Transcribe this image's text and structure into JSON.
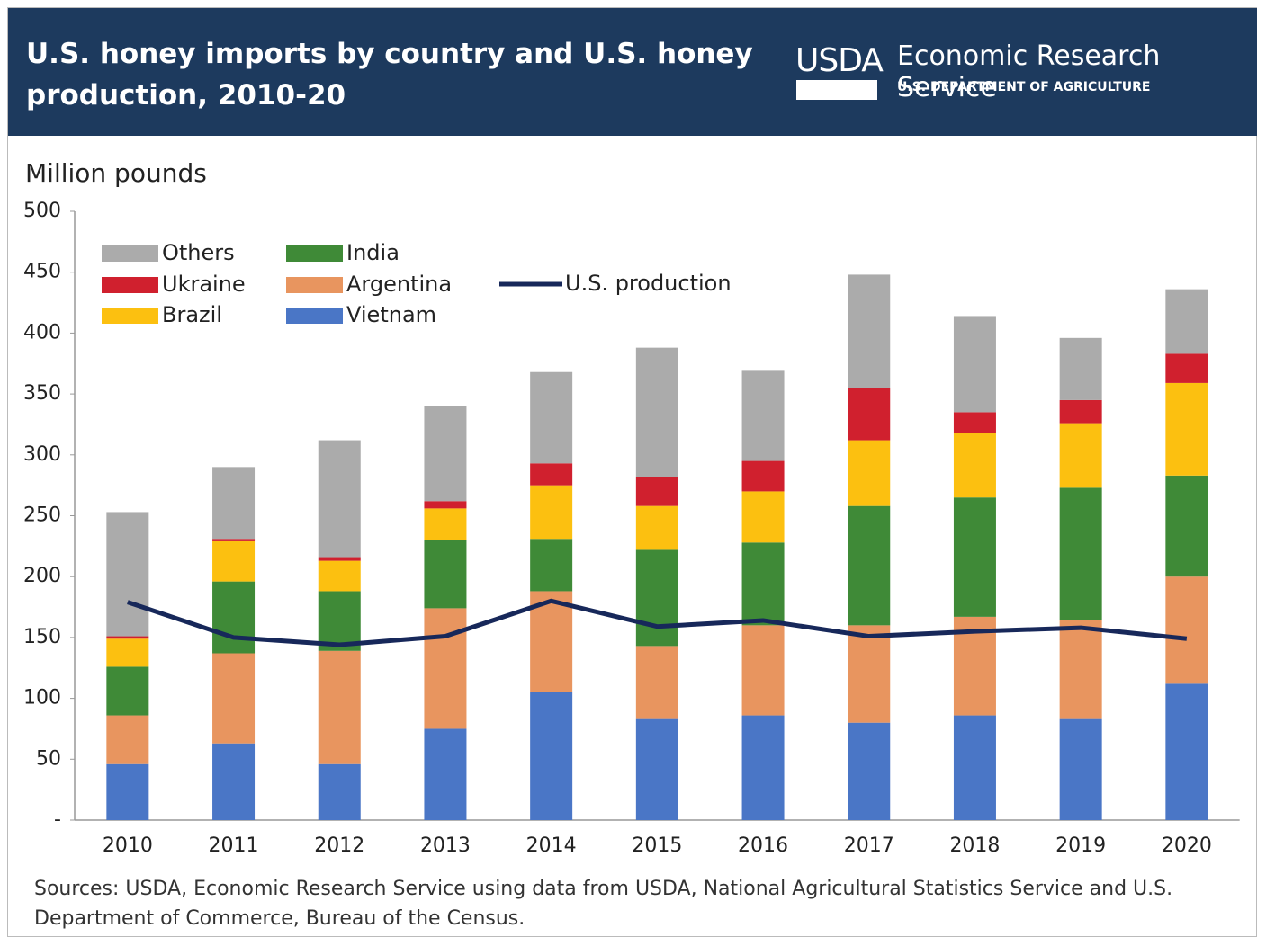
{
  "chart_data": {
    "type": "bar",
    "stacked": true,
    "title": "U.S. honey imports by country and U.S. honey production, 2010-20",
    "logo_text": "USDA",
    "organization": "Economic Research Service",
    "department": "U.S. DEPARTMENT OF AGRICULTURE",
    "y_label": "Million pounds",
    "source": "Sources: USDA, Economic Research Service using data from USDA, National Agricultural Statistics Service and U.S. Department of Commerce, Bureau of the Census.",
    "categories": [
      "2010",
      "2011",
      "2012",
      "2013",
      "2014",
      "2015",
      "2016",
      "2017",
      "2018",
      "2019",
      "2020"
    ],
    "series": [
      {
        "name": "Vietnam",
        "color": "#4a76c6",
        "values": [
          46,
          63,
          46,
          75,
          105,
          83,
          86,
          80,
          86,
          83,
          112
        ]
      },
      {
        "name": "Argentina",
        "color": "#e8955f",
        "values": [
          40,
          74,
          93,
          99,
          83,
          60,
          74,
          80,
          81,
          81,
          88
        ]
      },
      {
        "name": "India",
        "color": "#3f8a37",
        "values": [
          40,
          59,
          49,
          56,
          43,
          79,
          68,
          98,
          98,
          109,
          83
        ]
      },
      {
        "name": "Brazil",
        "color": "#fcc010",
        "values": [
          23,
          33,
          25,
          26,
          44,
          36,
          42,
          54,
          53,
          53,
          76
        ]
      },
      {
        "name": "Ukraine",
        "color": "#d0202e",
        "values": [
          2,
          2,
          3,
          6,
          18,
          24,
          25,
          43,
          17,
          19,
          24
        ]
      },
      {
        "name": "Others",
        "color": "#ababab",
        "values": [
          102,
          59,
          96,
          78,
          75,
          106,
          74,
          93,
          79,
          51,
          53
        ]
      },
      {
        "name": "U.S. production",
        "type": "line",
        "color": "#17285a",
        "values": [
          179,
          150,
          144,
          151,
          180,
          159,
          164,
          151,
          155,
          158,
          149
        ]
      }
    ],
    "ylim": [
      0,
      500
    ],
    "yticks": [
      {
        "value": 0,
        "label": "-"
      },
      50,
      100,
      150,
      200,
      250,
      300,
      350,
      400,
      450,
      500
    ],
    "grid": false
  }
}
